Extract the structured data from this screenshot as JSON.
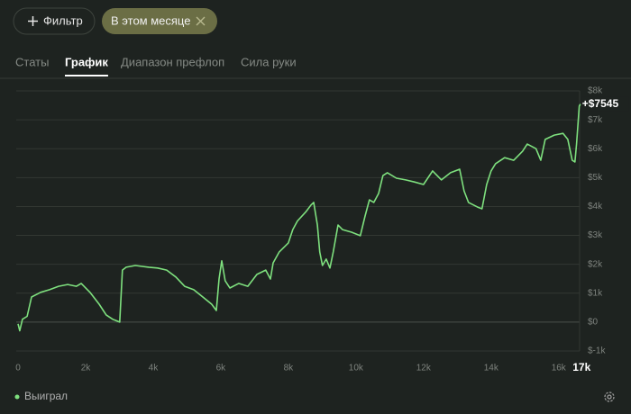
{
  "filter_button": "Фильтр",
  "chip": "В этом месяце",
  "tabs": [
    "Статы",
    "График",
    "Диапазон префлоп",
    "Сила руки"
  ],
  "active_tab": 1,
  "chart_data": {
    "type": "line",
    "x": [
      0,
      50,
      130,
      270,
      400,
      670,
      930,
      1200,
      1470,
      1730,
      1870,
      2130,
      2400,
      2610,
      2800,
      3010,
      3090,
      3200,
      3470,
      3870,
      4130,
      4400,
      4670,
      4930,
      5200,
      5470,
      5730,
      5870,
      5950,
      6030,
      6130,
      6270,
      6530,
      6800,
      7070,
      7330,
      7470,
      7550,
      7730,
      8000,
      8130,
      8270,
      8530,
      8670,
      8750,
      8860,
      8930,
      9010,
      9120,
      9230,
      9330,
      9470,
      9600,
      9870,
      10130,
      10270,
      10400,
      10530,
      10670,
      10800,
      10930,
      11200,
      11470,
      11730,
      12000,
      12270,
      12530,
      12800,
      13070,
      13200,
      13330,
      13600,
      13730,
      13870,
      14000,
      14130,
      14400,
      14670,
      14930,
      15070,
      15330,
      15470,
      15600,
      15870,
      16130,
      16270,
      16400,
      16480,
      16530,
      16610,
      16640
    ],
    "series": [
      {
        "name": "Выиграл",
        "color": "#7ee07e",
        "values": [
          -60,
          -300,
          100,
          200,
          870,
          1030,
          1120,
          1240,
          1300,
          1240,
          1340,
          1030,
          620,
          250,
          100,
          0,
          1800,
          1900,
          1960,
          1900,
          1870,
          1800,
          1560,
          1240,
          1120,
          870,
          620,
          400,
          1490,
          2120,
          1430,
          1180,
          1340,
          1240,
          1650,
          1800,
          1490,
          2050,
          2430,
          2740,
          3200,
          3500,
          3830,
          4050,
          4140,
          3360,
          2430,
          1960,
          2180,
          1870,
          2430,
          3360,
          3200,
          3110,
          2990,
          3670,
          4230,
          4140,
          4450,
          5070,
          5170,
          4980,
          4920,
          4850,
          4760,
          5230,
          4920,
          5170,
          5290,
          4540,
          4140,
          3980,
          3920,
          4760,
          5230,
          5480,
          5690,
          5600,
          5910,
          6160,
          6000,
          5600,
          6320,
          6470,
          6530,
          6320,
          5600,
          5540,
          6160,
          7470,
          7545
        ],
        "value_labels": [
          null,
          null,
          null,
          null,
          null,
          null,
          null,
          null,
          null,
          null,
          null,
          null,
          null,
          null,
          null,
          null,
          null,
          null,
          null,
          null,
          null,
          null,
          null,
          null,
          null,
          null,
          null,
          null,
          null,
          null,
          null,
          null,
          null,
          null,
          null,
          null,
          null,
          null,
          null,
          null,
          null,
          null,
          null,
          null,
          null,
          null,
          null,
          null,
          null,
          null,
          null,
          null,
          null,
          null,
          null,
          null,
          null,
          null,
          null,
          null,
          null,
          null,
          null,
          null,
          null,
          null,
          null,
          null,
          null,
          null,
          null,
          null,
          null,
          null,
          null,
          null,
          null,
          null,
          null,
          null,
          null,
          null,
          null,
          null,
          null,
          null,
          null,
          null,
          null,
          null,
          "+$7545"
        ]
      }
    ],
    "xlim": [
      0,
      16700
    ],
    "ylim": [
      -1000,
      8000
    ],
    "xticks": [
      0,
      {
        "value": 2000,
        "label": "2k"
      },
      {
        "value": 4000,
        "label": "4k"
      },
      {
        "value": 6000,
        "label": "6k"
      },
      {
        "value": 8000,
        "label": "8k"
      },
      {
        "value": 10000,
        "label": "10k"
      },
      {
        "value": 12000,
        "label": "12k"
      },
      {
        "value": 14000,
        "label": "14k"
      },
      {
        "value": 16000,
        "label": "16k"
      },
      {
        "value": 17000,
        "label": "17k"
      }
    ],
    "yticks": [
      {
        "value": -1000,
        "label": "$-1k"
      },
      {
        "value": 0,
        "label": "$0"
      },
      {
        "value": 1000,
        "label": "$1k"
      },
      {
        "value": 2000,
        "label": "$2k"
      },
      {
        "value": 3000,
        "label": "$3k"
      },
      {
        "value": 4000,
        "label": "$4k"
      },
      {
        "value": 5000,
        "label": "$5k"
      },
      {
        "value": 6000,
        "label": "$6k"
      },
      {
        "value": 7000,
        "label": "$7k"
      },
      {
        "value": 8000,
        "label": "$8k"
      }
    ],
    "grid": true
  }
}
